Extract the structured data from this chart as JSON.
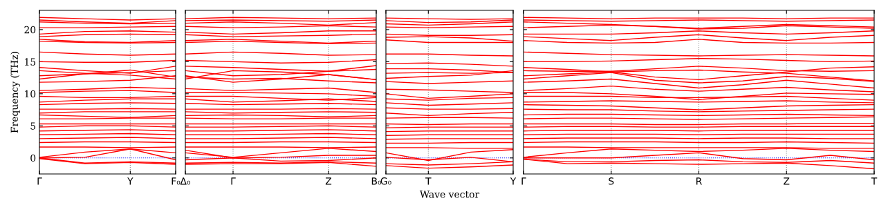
{
  "chart_data": [
    {
      "type": "line",
      "ylabel": "Frequency (THz)",
      "ylim": [
        -2.5,
        23
      ],
      "yticks": [
        0,
        5,
        10,
        15,
        20
      ],
      "categories": [
        "Γ",
        null,
        "Y",
        "F₀"
      ],
      "marker": "none",
      "line_style": "solid",
      "ref_lines": [
        {
          "axis": "y",
          "value": 0,
          "color": "#0000ff",
          "line_style": "dotted"
        },
        {
          "axis": "x",
          "value": "Y",
          "color": "#888888",
          "line_style": "dotted"
        }
      ],
      "series": [
        {
          "color": "#ff0000",
          "values": [
            21.9,
            21.7,
            21.5,
            21.7
          ]
        },
        {
          "color": "#ff0000",
          "values": [
            21.5,
            21.2,
            21.0,
            21.4
          ]
        },
        {
          "color": "#ff0000",
          "values": [
            21.2,
            21.0,
            20.9,
            21.0
          ]
        },
        {
          "color": "#ff0000",
          "values": [
            20.3,
            20.3,
            20.4,
            20.5
          ]
        },
        {
          "color": "#ff0000",
          "values": [
            19.3,
            19.7,
            19.8,
            19.6
          ]
        },
        {
          "color": "#ff0000",
          "values": [
            18.9,
            19.2,
            19.3,
            19.2
          ]
        },
        {
          "color": "#ff0000",
          "values": [
            18.5,
            18.1,
            18.0,
            18.3
          ]
        },
        {
          "color": "#ff0000",
          "values": [
            18.2,
            18.0,
            17.9,
            18.0
          ]
        },
        {
          "color": "#ff0000",
          "values": [
            16.5,
            16.2,
            16.0,
            16.2
          ]
        },
        {
          "color": "#ff0000",
          "values": [
            15.0,
            14.9,
            14.9,
            15.2
          ]
        },
        {
          "color": "#ff0000",
          "values": [
            14.1,
            13.6,
            13.2,
            14.3
          ]
        },
        {
          "color": "#ff0000",
          "values": [
            13.6,
            13.2,
            12.9,
            12.3
          ]
        },
        {
          "color": "#ff0000",
          "values": [
            12.8,
            13.1,
            13.3,
            13.6
          ]
        },
        {
          "color": "#ff0000",
          "values": [
            12.3,
            13.1,
            13.7,
            12.6
          ]
        },
        {
          "color": "#ff0000",
          "values": [
            11.8,
            11.9,
            12.1,
            12.8
          ]
        },
        {
          "color": "#ff0000",
          "values": [
            10.5,
            10.7,
            11.0,
            10.8
          ]
        },
        {
          "color": "#ff0000",
          "values": [
            10.2,
            10.4,
            10.5,
            10.2
          ]
        },
        {
          "color": "#ff0000",
          "values": [
            9.6,
            9.4,
            9.4,
            9.6
          ]
        },
        {
          "color": "#ff0000",
          "values": [
            8.7,
            9.0,
            9.2,
            9.2
          ]
        },
        {
          "color": "#ff0000",
          "values": [
            8.3,
            8.5,
            8.6,
            8.5
          ]
        },
        {
          "color": "#ff0000",
          "values": [
            7.6,
            7.6,
            7.7,
            7.6
          ]
        },
        {
          "color": "#ff0000",
          "values": [
            7.0,
            7.2,
            7.2,
            7.2
          ]
        },
        {
          "color": "#ff0000",
          "values": [
            6.7,
            6.5,
            6.3,
            6.6
          ]
        },
        {
          "color": "#ff0000",
          "values": [
            6.1,
            6.1,
            6.2,
            6.2
          ]
        },
        {
          "color": "#ff0000",
          "values": [
            5.3,
            5.3,
            5.3,
            5.3
          ]
        },
        {
          "color": "#ff0000",
          "values": [
            4.8,
            5.0,
            5.0,
            4.8
          ]
        },
        {
          "color": "#ff0000",
          "values": [
            4.2,
            4.3,
            4.4,
            4.2
          ]
        },
        {
          "color": "#ff0000",
          "values": [
            3.6,
            3.7,
            3.8,
            3.6
          ]
        },
        {
          "color": "#ff0000",
          "values": [
            3.0,
            3.1,
            3.2,
            3.0
          ]
        },
        {
          "color": "#ff0000",
          "values": [
            2.4,
            2.5,
            2.5,
            2.4
          ]
        },
        {
          "color": "#ff0000",
          "values": [
            1.7,
            1.7,
            1.6,
            1.7
          ]
        },
        {
          "color": "#ff0000",
          "values": [
            0.1,
            0.9,
            1.4,
            0.8
          ]
        },
        {
          "color": "#ff0000",
          "values": [
            0.0,
            0.1,
            1.4,
            -0.3
          ]
        },
        {
          "color": "#ff0000",
          "values": [
            0.0,
            -0.8,
            -0.6,
            -0.8
          ]
        },
        {
          "color": "#ff0000",
          "values": [
            -0.1,
            -0.9,
            -0.7,
            -1.0
          ]
        }
      ]
    },
    {
      "type": "line",
      "ylim": [
        -2.5,
        23
      ],
      "yticks": [
        0,
        5,
        10,
        15,
        20
      ],
      "tick_labels": "x",
      "categories": [
        "Δ₀",
        "Γ",
        null,
        "Z",
        "B₀"
      ],
      "marker": "none",
      "line_style": "solid",
      "ref_lines": [
        {
          "axis": "y",
          "value": 0,
          "color": "#0000ff",
          "line_style": "dotted"
        },
        {
          "axis": "x",
          "value": "Γ",
          "color": "#888888",
          "line_style": "dotted"
        },
        {
          "axis": "x",
          "value": "Z",
          "color": "#888888",
          "line_style": "dotted"
        }
      ],
      "series": [
        {
          "color": "#ff0000",
          "values": [
            21.7,
            21.9,
            21.8,
            21.7,
            21.8
          ]
        },
        {
          "color": "#ff0000",
          "values": [
            21.4,
            21.5,
            21.4,
            21.3,
            21.5
          ]
        },
        {
          "color": "#ff0000",
          "values": [
            21.0,
            21.2,
            21.0,
            20.7,
            21.1
          ]
        },
        {
          "color": "#ff0000",
          "values": [
            20.5,
            20.3,
            20.4,
            20.6,
            20.4
          ]
        },
        {
          "color": "#ff0000",
          "values": [
            19.6,
            19.3,
            19.5,
            19.8,
            19.8
          ]
        },
        {
          "color": "#ff0000",
          "values": [
            19.2,
            18.9,
            19.0,
            19.1,
            19.3
          ]
        },
        {
          "color": "#ff0000",
          "values": [
            18.3,
            18.5,
            18.2,
            17.9,
            18.2
          ]
        },
        {
          "color": "#ff0000",
          "values": [
            18.0,
            18.2,
            18.0,
            17.8,
            17.9
          ]
        },
        {
          "color": "#ff0000",
          "values": [
            16.2,
            16.5,
            16.3,
            16.0,
            16.1
          ]
        },
        {
          "color": "#ff0000",
          "values": [
            15.2,
            15.0,
            14.8,
            14.9,
            15.3
          ]
        },
        {
          "color": "#ff0000",
          "values": [
            14.3,
            14.1,
            13.8,
            13.5,
            14.4
          ]
        },
        {
          "color": "#ff0000",
          "values": [
            12.3,
            13.6,
            13.4,
            13.0,
            12.2
          ]
        },
        {
          "color": "#ff0000",
          "values": [
            13.6,
            12.8,
            13.0,
            13.5,
            13.8
          ]
        },
        {
          "color": "#ff0000",
          "values": [
            12.6,
            12.3,
            12.4,
            12.0,
            11.7
          ]
        },
        {
          "color": "#ff0000",
          "values": [
            12.8,
            11.8,
            12.3,
            13.0,
            12.2
          ]
        },
        {
          "color": "#ff0000",
          "values": [
            10.8,
            10.5,
            10.7,
            10.9,
            10.2
          ]
        },
        {
          "color": "#ff0000",
          "values": [
            10.2,
            10.2,
            10.1,
            10.0,
            9.6
          ]
        },
        {
          "color": "#ff0000",
          "values": [
            9.6,
            9.6,
            9.3,
            9.0,
            9.4
          ]
        },
        {
          "color": "#ff0000",
          "values": [
            9.2,
            8.7,
            8.9,
            9.2,
            8.8
          ]
        },
        {
          "color": "#ff0000",
          "values": [
            8.5,
            8.3,
            8.4,
            8.5,
            8.3
          ]
        },
        {
          "color": "#ff0000",
          "values": [
            7.6,
            7.6,
            7.6,
            7.7,
            7.6
          ]
        },
        {
          "color": "#ff0000",
          "values": [
            7.2,
            7.0,
            7.1,
            7.2,
            7.1
          ]
        },
        {
          "color": "#ff0000",
          "values": [
            6.6,
            6.7,
            6.6,
            6.4,
            6.6
          ]
        },
        {
          "color": "#ff0000",
          "values": [
            6.2,
            6.1,
            6.1,
            6.2,
            6.2
          ]
        },
        {
          "color": "#ff0000",
          "values": [
            5.3,
            5.3,
            5.3,
            5.3,
            5.3
          ]
        },
        {
          "color": "#ff0000",
          "values": [
            4.8,
            4.8,
            4.9,
            5.0,
            4.8
          ]
        },
        {
          "color": "#ff0000",
          "values": [
            4.2,
            4.2,
            4.3,
            4.4,
            4.2
          ]
        },
        {
          "color": "#ff0000",
          "values": [
            3.6,
            3.6,
            3.7,
            3.8,
            3.6
          ]
        },
        {
          "color": "#ff0000",
          "values": [
            3.0,
            3.0,
            3.1,
            3.2,
            3.0
          ]
        },
        {
          "color": "#ff0000",
          "values": [
            2.4,
            2.4,
            2.5,
            2.5,
            2.4
          ]
        },
        {
          "color": "#ff0000",
          "values": [
            1.7,
            1.7,
            1.7,
            1.6,
            1.7
          ]
        },
        {
          "color": "#ff0000",
          "values": [
            0.8,
            0.1,
            0.8,
            1.5,
            1.0
          ]
        },
        {
          "color": "#ff0000",
          "values": [
            1.2,
            0.0,
            0.1,
            0.4,
            0.4
          ]
        },
        {
          "color": "#ff0000",
          "values": [
            -0.3,
            0.0,
            -0.5,
            -0.4,
            0.0
          ]
        },
        {
          "color": "#ff0000",
          "values": [
            -0.8,
            -0.7,
            -0.8,
            -0.6,
            -0.8
          ]
        },
        {
          "color": "#ff0000",
          "values": [
            -1.0,
            -0.9,
            -0.9,
            -0.7,
            -1.3
          ]
        }
      ]
    },
    {
      "type": "line",
      "ylim": [
        -2.5,
        23
      ],
      "yticks": [
        0,
        5,
        10,
        15,
        20
      ],
      "tick_labels": "x",
      "xlabel": "Wave vector",
      "categories": [
        "G₀",
        "T",
        null,
        "Y"
      ],
      "marker": "none",
      "line_style": "solid",
      "ref_lines": [
        {
          "axis": "y",
          "value": 0,
          "color": "#0000ff",
          "line_style": "dotted"
        },
        {
          "axis": "x",
          "value": "T",
          "color": "#888888",
          "line_style": "dotted"
        }
      ],
      "series": [
        {
          "color": "#ff0000",
          "values": [
            21.8,
            21.7,
            21.6,
            21.7
          ]
        },
        {
          "color": "#ff0000",
          "values": [
            21.4,
            21.1,
            21.2,
            21.5
          ]
        },
        {
          "color": "#ff0000",
          "values": [
            20.9,
            20.7,
            20.9,
            21.2
          ]
        },
        {
          "color": "#ff0000",
          "values": [
            20.4,
            20.3,
            20.4,
            20.5
          ]
        },
        {
          "color": "#ff0000",
          "values": [
            19.3,
            19.1,
            19.1,
            19.2
          ]
        },
        {
          "color": "#ff0000",
          "values": [
            18.8,
            18.9,
            18.7,
            18.2
          ]
        },
        {
          "color": "#ff0000",
          "values": [
            18.4,
            18.0,
            18.0,
            18.0
          ]
        },
        {
          "color": "#ff0000",
          "values": [
            16.2,
            16.2,
            16.0,
            15.9
          ]
        },
        {
          "color": "#ff0000",
          "values": [
            14.7,
            14.8,
            14.6,
            14.3
          ]
        },
        {
          "color": "#ff0000",
          "values": [
            13.9,
            13.9,
            13.7,
            13.3
          ]
        },
        {
          "color": "#ff0000",
          "values": [
            13.2,
            13.3,
            13.2,
            13.3
          ]
        },
        {
          "color": "#ff0000",
          "values": [
            12.4,
            12.7,
            12.9,
            13.6
          ]
        },
        {
          "color": "#ff0000",
          "values": [
            11.9,
            11.6,
            11.8,
            12.0
          ]
        },
        {
          "color": "#ff0000",
          "values": [
            10.7,
            10.6,
            10.4,
            10.2
          ]
        },
        {
          "color": "#ff0000",
          "values": [
            10.0,
            9.3,
            9.6,
            10.0
          ]
        },
        {
          "color": "#ff0000",
          "values": [
            9.2,
            9.0,
            9.3,
            9.4
          ]
        },
        {
          "color": "#ff0000",
          "values": [
            8.6,
            8.2,
            8.4,
            8.6
          ]
        },
        {
          "color": "#ff0000",
          "values": [
            7.8,
            7.6,
            7.6,
            7.7
          ]
        },
        {
          "color": "#ff0000",
          "values": [
            7.0,
            6.6,
            6.9,
            7.1
          ]
        },
        {
          "color": "#ff0000",
          "values": [
            6.2,
            6.3,
            6.3,
            6.2
          ]
        },
        {
          "color": "#ff0000",
          "values": [
            5.3,
            5.2,
            5.3,
            5.3
          ]
        },
        {
          "color": "#ff0000",
          "values": [
            4.7,
            4.8,
            4.8,
            4.8
          ]
        },
        {
          "color": "#ff0000",
          "values": [
            4.1,
            4.2,
            4.2,
            4.2
          ]
        },
        {
          "color": "#ff0000",
          "values": [
            3.5,
            3.6,
            3.6,
            3.6
          ]
        },
        {
          "color": "#ff0000",
          "values": [
            2.9,
            3.0,
            3.0,
            3.0
          ]
        },
        {
          "color": "#ff0000",
          "values": [
            2.3,
            2.3,
            2.4,
            2.4
          ]
        },
        {
          "color": "#ff0000",
          "values": [
            1.6,
            1.6,
            1.5,
            1.5
          ]
        },
        {
          "color": "#ff0000",
          "values": [
            0.8,
            -0.4,
            0.9,
            1.3
          ]
        },
        {
          "color": "#ff0000",
          "values": [
            0.1,
            -0.3,
            0.1,
            -0.6
          ]
        },
        {
          "color": "#ff0000",
          "values": [
            -0.9,
            -1.1,
            -0.9,
            -0.6
          ]
        },
        {
          "color": "#ff0000",
          "values": [
            -1.2,
            -1.6,
            -1.4,
            -1.1
          ]
        }
      ]
    },
    {
      "type": "line",
      "ylim": [
        -2.5,
        23
      ],
      "yticks": [
        0,
        5,
        10,
        15,
        20
      ],
      "tick_labels": "x",
      "categories": [
        "Γ",
        null,
        "S",
        null,
        "R",
        null,
        "Z",
        null,
        "T"
      ],
      "marker": "none",
      "line_style": "solid",
      "ref_lines": [
        {
          "axis": "y",
          "value": 0,
          "color": "#0000ff",
          "line_style": "dotted"
        },
        {
          "axis": "x",
          "value": "S",
          "color": "#888888",
          "line_style": "dotted"
        },
        {
          "axis": "x",
          "value": "R",
          "color": "#888888",
          "line_style": "dotted"
        },
        {
          "axis": "x",
          "value": "Z",
          "color": "#888888",
          "line_style": "dotted"
        }
      ],
      "series": [
        {
          "color": "#ff0000",
          "values": [
            21.9,
            21.8,
            21.7,
            21.8,
            21.8,
            21.8,
            21.7,
            21.8,
            21.8
          ]
        },
        {
          "color": "#ff0000",
          "values": [
            21.5,
            21.4,
            21.3,
            21.4,
            21.5,
            21.4,
            21.3,
            21.4,
            21.5
          ]
        },
        {
          "color": "#ff0000",
          "values": [
            21.2,
            21.0,
            20.8,
            20.5,
            20.2,
            20.5,
            20.8,
            20.6,
            20.4
          ]
        },
        {
          "color": "#ff0000",
          "values": [
            20.3,
            20.5,
            20.7,
            20.5,
            20.1,
            20.2,
            20.6,
            20.4,
            20.2
          ]
        },
        {
          "color": "#ff0000",
          "values": [
            19.3,
            19.3,
            19.3,
            19.5,
            19.8,
            19.5,
            19.3,
            19.5,
            19.8
          ]
        },
        {
          "color": "#ff0000",
          "values": [
            18.9,
            18.6,
            18.3,
            18.8,
            19.2,
            18.7,
            18.3,
            18.8,
            19.1
          ]
        },
        {
          "color": "#ff0000",
          "values": [
            18.3,
            18.0,
            17.9,
            18.0,
            18.5,
            18.0,
            17.9,
            17.9,
            18.0
          ]
        },
        {
          "color": "#ff0000",
          "values": [
            16.5,
            16.3,
            16.1,
            16.0,
            15.9,
            16.0,
            16.1,
            16.0,
            15.9
          ]
        },
        {
          "color": "#ff0000",
          "values": [
            15.0,
            15.0,
            15.1,
            15.3,
            15.5,
            15.4,
            15.2,
            15.0,
            15.1
          ]
        },
        {
          "color": "#ff0000",
          "values": [
            14.1,
            13.8,
            13.4,
            12.6,
            12.2,
            12.8,
            13.4,
            14.0,
            14.2
          ]
        },
        {
          "color": "#ff0000",
          "values": [
            13.6,
            13.5,
            13.5,
            13.9,
            14.3,
            14.0,
            13.6,
            13.5,
            13.6
          ]
        },
        {
          "color": "#ff0000",
          "values": [
            12.8,
            13.1,
            13.4,
            13.6,
            13.7,
            13.4,
            13.2,
            12.6,
            12.0
          ]
        },
        {
          "color": "#ff0000",
          "values": [
            12.3,
            12.8,
            13.3,
            12.1,
            11.7,
            12.0,
            12.7,
            12.4,
            11.9
          ]
        },
        {
          "color": "#ff0000",
          "values": [
            11.8,
            12.0,
            12.3,
            11.6,
            10.9,
            11.4,
            12.1,
            11.5,
            10.9
          ]
        },
        {
          "color": "#ff0000",
          "values": [
            10.5,
            10.8,
            11.2,
            10.7,
            10.4,
            10.7,
            11.0,
            10.6,
            10.3
          ]
        },
        {
          "color": "#ff0000",
          "values": [
            10.2,
            10.2,
            10.0,
            9.6,
            9.1,
            9.6,
            10.1,
            10.0,
            9.9
          ]
        },
        {
          "color": "#ff0000",
          "values": [
            9.6,
            9.6,
            9.6,
            9.4,
            9.4,
            9.5,
            9.6,
            9.3,
            9.0
          ]
        },
        {
          "color": "#ff0000",
          "values": [
            8.7,
            8.8,
            8.9,
            8.8,
            8.7,
            8.8,
            8.9,
            8.7,
            8.6
          ]
        },
        {
          "color": "#ff0000",
          "values": [
            8.3,
            8.2,
            8.1,
            7.8,
            7.5,
            7.8,
            8.1,
            8.2,
            8.3
          ]
        },
        {
          "color": "#ff0000",
          "values": [
            7.6,
            7.5,
            7.5,
            7.3,
            7.2,
            7.3,
            7.4,
            7.5,
            7.6
          ]
        },
        {
          "color": "#ff0000",
          "values": [
            6.7,
            6.8,
            6.8,
            6.7,
            6.6,
            6.7,
            6.8,
            6.7,
            6.6
          ]
        },
        {
          "color": "#ff0000",
          "values": [
            6.1,
            6.2,
            6.2,
            6.1,
            6.0,
            6.1,
            6.2,
            6.3,
            6.4
          ]
        },
        {
          "color": "#ff0000",
          "values": [
            5.3,
            5.3,
            5.3,
            5.2,
            5.2,
            5.3,
            5.3,
            5.4,
            5.4
          ]
        },
        {
          "color": "#ff0000",
          "values": [
            4.8,
            4.9,
            4.9,
            4.8,
            4.8,
            4.9,
            4.9,
            4.9,
            4.9
          ]
        },
        {
          "color": "#ff0000",
          "values": [
            4.2,
            4.3,
            4.3,
            4.3,
            4.2,
            4.3,
            4.3,
            4.3,
            4.3
          ]
        },
        {
          "color": "#ff0000",
          "values": [
            3.6,
            3.7,
            3.7,
            3.7,
            3.6,
            3.7,
            3.7,
            3.7,
            3.7
          ]
        },
        {
          "color": "#ff0000",
          "values": [
            3.0,
            3.1,
            3.1,
            3.1,
            3.0,
            3.1,
            3.1,
            3.0,
            3.0
          ]
        },
        {
          "color": "#ff0000",
          "values": [
            2.4,
            2.5,
            2.5,
            2.5,
            2.4,
            2.4,
            2.5,
            2.4,
            2.3
          ]
        },
        {
          "color": "#ff0000",
          "values": [
            1.7,
            1.7,
            1.6,
            1.6,
            1.6,
            1.6,
            1.6,
            1.5,
            1.5
          ]
        },
        {
          "color": "#ff0000",
          "values": [
            0.1,
            0.8,
            1.4,
            1.2,
            1.0,
            1.2,
            1.5,
            1.2,
            1.0
          ]
        },
        {
          "color": "#ff0000",
          "values": [
            0.0,
            0.0,
            0.0,
            0.4,
            0.8,
            -0.1,
            -0.3,
            0.4,
            -0.3
          ]
        },
        {
          "color": "#ff0000",
          "values": [
            -0.2,
            -0.6,
            -0.6,
            -0.4,
            -0.3,
            -0.6,
            -0.7,
            -0.4,
            -0.8
          ]
        },
        {
          "color": "#ff0000",
          "values": [
            -0.2,
            -0.9,
            -0.8,
            -0.9,
            -1.0,
            -0.9,
            -0.8,
            -1.2,
            -1.7
          ]
        }
      ]
    }
  ]
}
